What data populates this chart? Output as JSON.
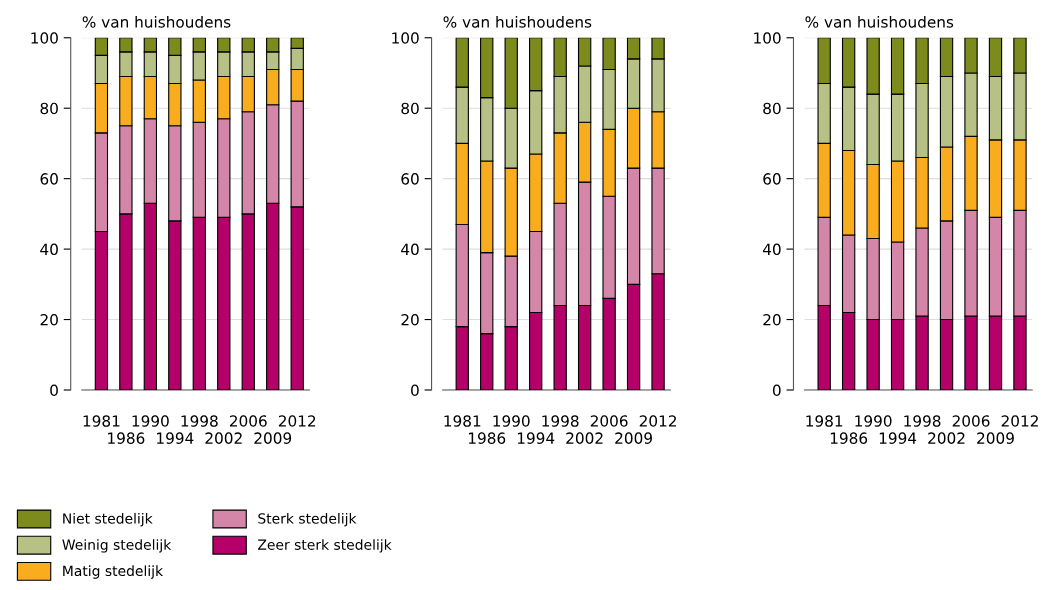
{
  "chart_data": [
    {
      "type": "bar",
      "stacked": true,
      "ylabel": "% van huishoudens",
      "categories": [
        "1981",
        "1986",
        "1990",
        "1994",
        "1998",
        "2002",
        "2006",
        "2009",
        "2012"
      ],
      "ylim": [
        0,
        100
      ],
      "yticks": [
        0,
        20,
        40,
        60,
        80,
        100
      ],
      "grid": "y",
      "legend": "bottom",
      "series": [
        {
          "name": "Zeer sterk stedelijk",
          "color": "#b5006a",
          "values": [
            45,
            50,
            53,
            48,
            49,
            49,
            50,
            53,
            52
          ]
        },
        {
          "name": "Sterk stedelijk",
          "color": "#d386a8",
          "values": [
            28,
            25,
            24,
            27,
            27,
            28,
            29,
            28,
            30
          ]
        },
        {
          "name": "Matig stedelijk",
          "color": "#f9ad1e",
          "values": [
            14,
            14,
            12,
            12,
            12,
            12,
            10,
            10,
            9
          ]
        },
        {
          "name": "Weinig stedelijk",
          "color": "#b8c185",
          "values": [
            8,
            7,
            7,
            8,
            8,
            7,
            7,
            5,
            6
          ]
        },
        {
          "name": "Niet stedelijk",
          "color": "#7d8a1c",
          "values": [
            5,
            4,
            4,
            5,
            4,
            4,
            4,
            4,
            3
          ]
        }
      ]
    },
    {
      "type": "bar",
      "stacked": true,
      "ylabel": "% van huishoudens",
      "categories": [
        "1981",
        "1986",
        "1990",
        "1994",
        "1998",
        "2002",
        "2006",
        "2009",
        "2012"
      ],
      "ylim": [
        0,
        100
      ],
      "yticks": [
        0,
        20,
        40,
        60,
        80,
        100
      ],
      "grid": "y",
      "series": [
        {
          "color": "#b5006a",
          "values": [
            18,
            16,
            18,
            22,
            24,
            24,
            26,
            30,
            33
          ]
        },
        {
          "color": "#d386a8",
          "values": [
            29,
            23,
            20,
            23,
            29,
            35,
            29,
            33,
            30
          ]
        },
        {
          "color": "#f9ad1e",
          "values": [
            23,
            26,
            25,
            22,
            20,
            17,
            19,
            17,
            16
          ]
        },
        {
          "color": "#b8c185",
          "values": [
            16,
            18,
            17,
            18,
            16,
            16,
            17,
            14,
            15
          ]
        },
        {
          "color": "#7d8a1c",
          "values": [
            14,
            17,
            20,
            15,
            11,
            8,
            9,
            6,
            6
          ]
        }
      ]
    },
    {
      "type": "bar",
      "stacked": true,
      "ylabel": "% van huishoudens",
      "categories": [
        "1981",
        "1986",
        "1990",
        "1994",
        "1998",
        "2002",
        "2006",
        "2009",
        "2012"
      ],
      "ylim": [
        0,
        100
      ],
      "yticks": [
        0,
        20,
        40,
        60,
        80,
        100
      ],
      "grid": "y",
      "series": [
        {
          "color": "#b5006a",
          "values": [
            24,
            22,
            20,
            20,
            21,
            20,
            21,
            21,
            21
          ]
        },
        {
          "color": "#d386a8",
          "values": [
            25,
            22,
            23,
            22,
            25,
            28,
            30,
            28,
            30
          ]
        },
        {
          "color": "#f9ad1e",
          "values": [
            21,
            24,
            21,
            23,
            20,
            21,
            21,
            22,
            20
          ]
        },
        {
          "color": "#b8c185",
          "values": [
            17,
            18,
            20,
            19,
            21,
            20,
            18,
            18,
            19
          ]
        },
        {
          "color": "#7d8a1c",
          "values": [
            13,
            14,
            16,
            16,
            13,
            11,
            10,
            11,
            10
          ]
        }
      ]
    }
  ]
}
